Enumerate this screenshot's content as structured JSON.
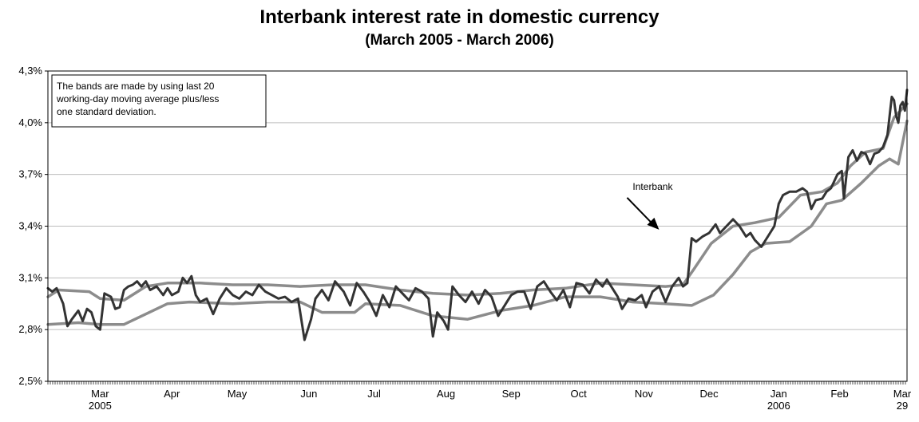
{
  "chart_data": {
    "type": "line",
    "title": "Interbank interest rate in domestic currency",
    "subtitle": "(March 2005 - March 2006)",
    "xlabel": "",
    "ylabel": "",
    "ylim": [
      2.5,
      4.3
    ],
    "yticks": [
      {
        "value": 2.5,
        "label": "2,5%"
      },
      {
        "value": 2.8,
        "label": "2,8%"
      },
      {
        "value": 3.1,
        "label": "3,1%"
      },
      {
        "value": 3.4,
        "label": "3,4%"
      },
      {
        "value": 3.7,
        "label": "3,7%"
      },
      {
        "value": 4.0,
        "label": "4,0%"
      },
      {
        "value": 4.3,
        "label": "4,3%"
      }
    ],
    "grid": true,
    "xlim": [
      "2005-03-01",
      "2006-03-31"
    ],
    "xticks": [
      {
        "date": "2005-03-25",
        "label": "Mar",
        "sub": "2005"
      },
      {
        "date": "2005-04-27",
        "label": "Apr",
        "sub": ""
      },
      {
        "date": "2005-05-27",
        "label": "May",
        "sub": ""
      },
      {
        "date": "2005-06-29",
        "label": "Jun",
        "sub": ""
      },
      {
        "date": "2005-07-29",
        "label": "Jul",
        "sub": ""
      },
      {
        "date": "2005-08-31",
        "label": "Aug",
        "sub": ""
      },
      {
        "date": "2005-09-30",
        "label": "Sep",
        "sub": ""
      },
      {
        "date": "2005-10-31",
        "label": "Oct",
        "sub": ""
      },
      {
        "date": "2005-11-30",
        "label": "Nov",
        "sub": ""
      },
      {
        "date": "2005-12-30",
        "label": "Dec",
        "sub": ""
      },
      {
        "date": "2006-01-31",
        "label": "Jan",
        "sub": "2006"
      },
      {
        "date": "2006-02-28",
        "label": "Feb",
        "sub": ""
      },
      {
        "date": "2006-03-29",
        "label": "Mar",
        "sub": "29"
      }
    ],
    "note": [
      "The bands are made by using last 20",
      "working-day moving average plus/less",
      "one standard deviation."
    ],
    "annotation": {
      "text": "Interbank",
      "date": "2005-12-07",
      "value": 3.38
    },
    "series": [
      {
        "name": "Interbank",
        "color": "#333333",
        "points": [
          [
            "2005-03-01",
            3.04
          ],
          [
            "2005-03-03",
            3.02
          ],
          [
            "2005-03-05",
            3.04
          ],
          [
            "2005-03-08",
            2.95
          ],
          [
            "2005-03-10",
            2.82
          ],
          [
            "2005-03-12",
            2.86
          ],
          [
            "2005-03-15",
            2.91
          ],
          [
            "2005-03-17",
            2.85
          ],
          [
            "2005-03-19",
            2.92
          ],
          [
            "2005-03-21",
            2.9
          ],
          [
            "2005-03-23",
            2.82
          ],
          [
            "2005-03-25",
            2.8
          ],
          [
            "2005-03-27",
            3.01
          ],
          [
            "2005-03-30",
            2.99
          ],
          [
            "2005-04-01",
            2.92
          ],
          [
            "2005-04-03",
            2.93
          ],
          [
            "2005-04-05",
            3.03
          ],
          [
            "2005-04-07",
            3.05
          ],
          [
            "2005-04-09",
            3.06
          ],
          [
            "2005-04-11",
            3.08
          ],
          [
            "2005-04-13",
            3.05
          ],
          [
            "2005-04-15",
            3.08
          ],
          [
            "2005-04-17",
            3.03
          ],
          [
            "2005-04-20",
            3.05
          ],
          [
            "2005-04-23",
            3.0
          ],
          [
            "2005-04-25",
            3.04
          ],
          [
            "2005-04-27",
            3.0
          ],
          [
            "2005-04-30",
            3.02
          ],
          [
            "2005-05-02",
            3.1
          ],
          [
            "2005-05-04",
            3.07
          ],
          [
            "2005-05-06",
            3.11
          ],
          [
            "2005-05-08",
            3.0
          ],
          [
            "2005-05-10",
            2.96
          ],
          [
            "2005-05-13",
            2.98
          ],
          [
            "2005-05-16",
            2.89
          ],
          [
            "2005-05-19",
            2.98
          ],
          [
            "2005-05-22",
            3.04
          ],
          [
            "2005-05-25",
            3.0
          ],
          [
            "2005-05-28",
            2.98
          ],
          [
            "2005-05-31",
            3.02
          ],
          [
            "2005-06-03",
            3.0
          ],
          [
            "2005-06-06",
            3.06
          ],
          [
            "2005-06-09",
            3.02
          ],
          [
            "2005-06-12",
            3.0
          ],
          [
            "2005-06-15",
            2.98
          ],
          [
            "2005-06-18",
            2.99
          ],
          [
            "2005-06-21",
            2.96
          ],
          [
            "2005-06-24",
            2.98
          ],
          [
            "2005-06-27",
            2.74
          ],
          [
            "2005-06-30",
            2.86
          ],
          [
            "2005-07-02",
            2.98
          ],
          [
            "2005-07-05",
            3.03
          ],
          [
            "2005-07-08",
            2.97
          ],
          [
            "2005-07-11",
            3.08
          ],
          [
            "2005-07-13",
            3.05
          ],
          [
            "2005-07-15",
            3.02
          ],
          [
            "2005-07-18",
            2.94
          ],
          [
            "2005-07-21",
            3.07
          ],
          [
            "2005-07-24",
            3.02
          ],
          [
            "2005-07-27",
            2.96
          ],
          [
            "2005-07-30",
            2.88
          ],
          [
            "2005-08-02",
            3.0
          ],
          [
            "2005-08-05",
            2.93
          ],
          [
            "2005-08-08",
            3.05
          ],
          [
            "2005-08-11",
            3.01
          ],
          [
            "2005-08-14",
            2.97
          ],
          [
            "2005-08-17",
            3.04
          ],
          [
            "2005-08-20",
            3.02
          ],
          [
            "2005-08-23",
            2.98
          ],
          [
            "2005-08-25",
            2.76
          ],
          [
            "2005-08-27",
            2.9
          ],
          [
            "2005-08-30",
            2.85
          ],
          [
            "2005-09-01",
            2.8
          ],
          [
            "2005-09-03",
            3.05
          ],
          [
            "2005-09-06",
            3.0
          ],
          [
            "2005-09-09",
            2.96
          ],
          [
            "2005-09-12",
            3.02
          ],
          [
            "2005-09-15",
            2.95
          ],
          [
            "2005-09-18",
            3.03
          ],
          [
            "2005-09-21",
            2.99
          ],
          [
            "2005-09-24",
            2.88
          ],
          [
            "2005-09-27",
            2.94
          ],
          [
            "2005-09-30",
            3.0
          ],
          [
            "2005-10-03",
            3.02
          ],
          [
            "2005-10-06",
            3.02
          ],
          [
            "2005-10-09",
            2.92
          ],
          [
            "2005-10-12",
            3.05
          ],
          [
            "2005-10-15",
            3.08
          ],
          [
            "2005-10-18",
            3.02
          ],
          [
            "2005-10-21",
            2.97
          ],
          [
            "2005-10-24",
            3.03
          ],
          [
            "2005-10-27",
            2.93
          ],
          [
            "2005-10-30",
            3.07
          ],
          [
            "2005-11-02",
            3.06
          ],
          [
            "2005-11-05",
            3.01
          ],
          [
            "2005-11-08",
            3.09
          ],
          [
            "2005-11-11",
            3.05
          ],
          [
            "2005-11-13",
            3.09
          ],
          [
            "2005-11-15",
            3.05
          ],
          [
            "2005-11-18",
            2.99
          ],
          [
            "2005-11-20",
            2.92
          ],
          [
            "2005-11-23",
            2.98
          ],
          [
            "2005-11-26",
            2.97
          ],
          [
            "2005-11-29",
            3.0
          ],
          [
            "2005-12-01",
            2.93
          ],
          [
            "2005-12-04",
            3.02
          ],
          [
            "2005-12-07",
            3.05
          ],
          [
            "2005-12-10",
            2.96
          ],
          [
            "2005-12-13",
            3.05
          ],
          [
            "2005-12-16",
            3.1
          ],
          [
            "2005-12-18",
            3.05
          ],
          [
            "2005-12-20",
            3.07
          ],
          [
            "2005-12-22",
            3.33
          ],
          [
            "2005-12-24",
            3.31
          ],
          [
            "2005-12-27",
            3.34
          ],
          [
            "2005-12-30",
            3.36
          ],
          [
            "2006-01-02",
            3.41
          ],
          [
            "2006-01-04",
            3.36
          ],
          [
            "2006-01-07",
            3.4
          ],
          [
            "2006-01-10",
            3.44
          ],
          [
            "2006-01-13",
            3.4
          ],
          [
            "2006-01-16",
            3.34
          ],
          [
            "2006-01-18",
            3.36
          ],
          [
            "2006-01-20",
            3.32
          ],
          [
            "2006-01-23",
            3.28
          ],
          [
            "2006-01-26",
            3.34
          ],
          [
            "2006-01-29",
            3.4
          ],
          [
            "2006-01-31",
            3.53
          ],
          [
            "2006-02-02",
            3.58
          ],
          [
            "2006-02-05",
            3.6
          ],
          [
            "2006-02-08",
            3.6
          ],
          [
            "2006-02-11",
            3.62
          ],
          [
            "2006-02-13",
            3.6
          ],
          [
            "2006-02-15",
            3.5
          ],
          [
            "2006-02-17",
            3.55
          ],
          [
            "2006-02-20",
            3.56
          ],
          [
            "2006-02-22",
            3.6
          ],
          [
            "2006-02-24",
            3.62
          ],
          [
            "2006-02-27",
            3.7
          ],
          [
            "2006-03-01",
            3.72
          ],
          [
            "2006-03-02",
            3.56
          ],
          [
            "2006-03-04",
            3.8
          ],
          [
            "2006-03-06",
            3.84
          ],
          [
            "2006-03-08",
            3.78
          ],
          [
            "2006-03-10",
            3.83
          ],
          [
            "2006-03-12",
            3.82
          ],
          [
            "2006-03-14",
            3.76
          ],
          [
            "2006-03-16",
            3.82
          ],
          [
            "2006-03-18",
            3.83
          ],
          [
            "2006-03-20",
            3.86
          ],
          [
            "2006-03-22",
            3.93
          ],
          [
            "2006-03-24",
            4.15
          ],
          [
            "2006-03-25",
            4.13
          ],
          [
            "2006-03-26",
            4.04
          ],
          [
            "2006-03-27",
            4.0
          ],
          [
            "2006-03-28",
            4.1
          ],
          [
            "2006-03-29",
            4.12
          ],
          [
            "2006-03-30",
            4.07
          ],
          [
            "2006-03-31",
            4.19
          ]
        ]
      },
      {
        "name": "",
        "color": "#8c8c8c",
        "points": [
          [
            "2005-03-01",
            2.99
          ],
          [
            "2005-03-06",
            3.03
          ],
          [
            "2005-03-20",
            3.02
          ],
          [
            "2005-03-25",
            2.98
          ],
          [
            "2005-04-05",
            2.97
          ],
          [
            "2005-04-15",
            3.05
          ],
          [
            "2005-04-25",
            3.07
          ],
          [
            "2005-05-10",
            3.07
          ],
          [
            "2005-05-25",
            3.06
          ],
          [
            "2005-06-10",
            3.06
          ],
          [
            "2005-06-25",
            3.05
          ],
          [
            "2005-07-10",
            3.06
          ],
          [
            "2005-07-25",
            3.06
          ],
          [
            "2005-08-10",
            3.03
          ],
          [
            "2005-08-25",
            3.01
          ],
          [
            "2005-09-10",
            3.0
          ],
          [
            "2005-09-25",
            3.01
          ],
          [
            "2005-10-10",
            3.03
          ],
          [
            "2005-10-25",
            3.04
          ],
          [
            "2005-11-10",
            3.07
          ],
          [
            "2005-11-25",
            3.06
          ],
          [
            "2005-12-10",
            3.05
          ],
          [
            "2005-12-18",
            3.06
          ],
          [
            "2005-12-23",
            3.15
          ],
          [
            "2005-12-31",
            3.3
          ],
          [
            "2006-01-10",
            3.4
          ],
          [
            "2006-01-20",
            3.42
          ],
          [
            "2006-01-31",
            3.45
          ],
          [
            "2006-02-10",
            3.58
          ],
          [
            "2006-02-20",
            3.6
          ],
          [
            "2006-02-27",
            3.65
          ],
          [
            "2006-03-05",
            3.75
          ],
          [
            "2006-03-12",
            3.83
          ],
          [
            "2006-03-20",
            3.85
          ],
          [
            "2006-03-25",
            4.03
          ],
          [
            "2006-03-31",
            4.11
          ]
        ]
      },
      {
        "name": "",
        "color": "#8c8c8c",
        "points": [
          [
            "2005-03-01",
            2.83
          ],
          [
            "2005-03-15",
            2.84
          ],
          [
            "2005-03-25",
            2.83
          ],
          [
            "2005-04-05",
            2.83
          ],
          [
            "2005-04-15",
            2.89
          ],
          [
            "2005-04-25",
            2.95
          ],
          [
            "2005-05-05",
            2.96
          ],
          [
            "2005-05-25",
            2.95
          ],
          [
            "2005-06-10",
            2.96
          ],
          [
            "2005-06-25",
            2.96
          ],
          [
            "2005-07-05",
            2.9
          ],
          [
            "2005-07-20",
            2.9
          ],
          [
            "2005-07-25",
            2.95
          ],
          [
            "2005-08-10",
            2.94
          ],
          [
            "2005-08-25",
            2.88
          ],
          [
            "2005-09-10",
            2.86
          ],
          [
            "2005-09-25",
            2.91
          ],
          [
            "2005-10-10",
            2.94
          ],
          [
            "2005-10-25",
            2.99
          ],
          [
            "2005-11-10",
            2.99
          ],
          [
            "2005-11-25",
            2.96
          ],
          [
            "2005-12-10",
            2.95
          ],
          [
            "2005-12-22",
            2.94
          ],
          [
            "2006-01-01",
            3.0
          ],
          [
            "2006-01-10",
            3.12
          ],
          [
            "2006-01-18",
            3.25
          ],
          [
            "2006-01-25",
            3.3
          ],
          [
            "2006-02-05",
            3.31
          ],
          [
            "2006-02-15",
            3.4
          ],
          [
            "2006-02-22",
            3.53
          ],
          [
            "2006-03-01",
            3.55
          ],
          [
            "2006-03-10",
            3.65
          ],
          [
            "2006-03-18",
            3.75
          ],
          [
            "2006-03-23",
            3.79
          ],
          [
            "2006-03-27",
            3.76
          ],
          [
            "2006-03-31",
            4.01
          ]
        ]
      }
    ]
  }
}
